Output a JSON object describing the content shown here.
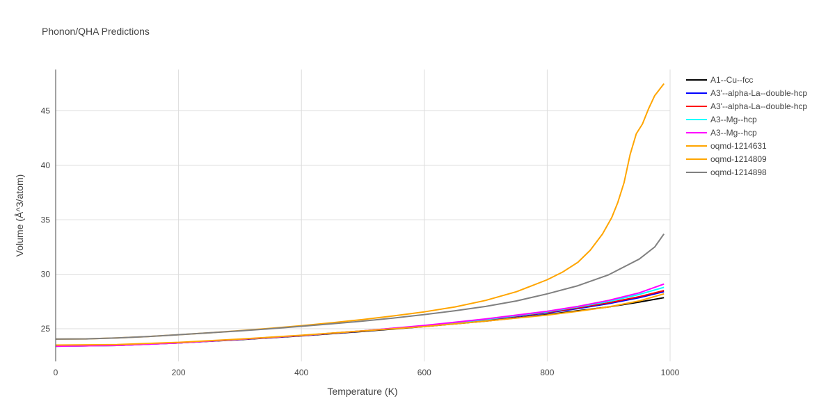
{
  "chart_data": {
    "type": "line",
    "title": "Phonon/QHA Predictions",
    "xlabel": "Temperature (K)",
    "ylabel": "Volume (Å^3/atom)",
    "xlim": [
      0,
      1000
    ],
    "ylim": [
      22.0,
      48.8
    ],
    "x_ticks": [
      0,
      200,
      400,
      600,
      800,
      1000
    ],
    "y_ticks": [
      25,
      30,
      35,
      40,
      45
    ],
    "grid": true,
    "legend_position": "right",
    "series": [
      {
        "name": "A1--Cu--fcc",
        "color": "#000000",
        "points": [
          [
            0,
            23.45
          ],
          [
            100,
            23.5
          ],
          [
            200,
            23.7
          ],
          [
            300,
            24.0
          ],
          [
            400,
            24.35
          ],
          [
            500,
            24.75
          ],
          [
            600,
            25.2
          ],
          [
            700,
            25.7
          ],
          [
            800,
            26.3
          ],
          [
            850,
            26.65
          ],
          [
            900,
            27.0
          ],
          [
            950,
            27.45
          ],
          [
            990,
            27.85
          ]
        ]
      },
      {
        "name": "A3'--alpha-La--double-hcp",
        "color": "#0000ff",
        "points": [
          [
            0,
            23.4
          ],
          [
            100,
            23.47
          ],
          [
            200,
            23.7
          ],
          [
            300,
            24.02
          ],
          [
            400,
            24.38
          ],
          [
            500,
            24.78
          ],
          [
            600,
            25.25
          ],
          [
            700,
            25.8
          ],
          [
            800,
            26.45
          ],
          [
            850,
            26.85
          ],
          [
            900,
            27.3
          ],
          [
            950,
            27.85
          ],
          [
            990,
            28.4
          ]
        ]
      },
      {
        "name": "A3'--alpha-La--double-hcp",
        "color": "#ff0000",
        "points": [
          [
            0,
            23.4
          ],
          [
            100,
            23.47
          ],
          [
            200,
            23.7
          ],
          [
            300,
            24.02
          ],
          [
            400,
            24.38
          ],
          [
            500,
            24.8
          ],
          [
            600,
            25.27
          ],
          [
            700,
            25.83
          ],
          [
            800,
            26.5
          ],
          [
            850,
            26.92
          ],
          [
            900,
            27.38
          ],
          [
            950,
            27.95
          ],
          [
            990,
            28.5
          ]
        ]
      },
      {
        "name": "A3--Mg--hcp",
        "color": "#00ffff",
        "points": [
          [
            0,
            23.4
          ],
          [
            100,
            23.47
          ],
          [
            200,
            23.7
          ],
          [
            300,
            24.02
          ],
          [
            400,
            24.38
          ],
          [
            500,
            24.8
          ],
          [
            600,
            25.28
          ],
          [
            700,
            25.85
          ],
          [
            800,
            26.55
          ],
          [
            850,
            27.0
          ],
          [
            900,
            27.5
          ],
          [
            950,
            28.15
          ],
          [
            990,
            28.8
          ]
        ]
      },
      {
        "name": "A3--Mg--hcp",
        "color": "#ff00ff",
        "points": [
          [
            0,
            23.4
          ],
          [
            100,
            23.47
          ],
          [
            200,
            23.7
          ],
          [
            300,
            24.02
          ],
          [
            400,
            24.38
          ],
          [
            500,
            24.8
          ],
          [
            600,
            25.3
          ],
          [
            700,
            25.9
          ],
          [
            800,
            26.6
          ],
          [
            850,
            27.05
          ],
          [
            900,
            27.6
          ],
          [
            950,
            28.3
          ],
          [
            990,
            29.1
          ]
        ]
      },
      {
        "name": "oqmd-1214631",
        "color": "#ffa500",
        "points": [
          [
            0,
            23.5
          ],
          [
            100,
            23.55
          ],
          [
            200,
            23.75
          ],
          [
            300,
            24.05
          ],
          [
            400,
            24.4
          ],
          [
            500,
            24.8
          ],
          [
            600,
            25.2
          ],
          [
            700,
            25.7
          ],
          [
            800,
            26.25
          ],
          [
            850,
            26.6
          ],
          [
            900,
            27.0
          ],
          [
            950,
            27.55
          ],
          [
            990,
            28.2
          ]
        ]
      },
      {
        "name": "oqmd-1214809",
        "color": "#ffa500",
        "points": [
          [
            0,
            24.05
          ],
          [
            50,
            24.07
          ],
          [
            100,
            24.15
          ],
          [
            150,
            24.28
          ],
          [
            200,
            24.45
          ],
          [
            250,
            24.62
          ],
          [
            300,
            24.82
          ],
          [
            350,
            25.04
          ],
          [
            400,
            25.28
          ],
          [
            450,
            25.55
          ],
          [
            500,
            25.85
          ],
          [
            550,
            26.18
          ],
          [
            600,
            26.55
          ],
          [
            650,
            27.0
          ],
          [
            700,
            27.6
          ],
          [
            750,
            28.4
          ],
          [
            800,
            29.5
          ],
          [
            825,
            30.2
          ],
          [
            850,
            31.1
          ],
          [
            870,
            32.2
          ],
          [
            890,
            33.7
          ],
          [
            905,
            35.2
          ],
          [
            915,
            36.6
          ],
          [
            925,
            38.4
          ],
          [
            935,
            41.0
          ],
          [
            945,
            42.9
          ],
          [
            955,
            43.8
          ],
          [
            965,
            45.2
          ],
          [
            975,
            46.4
          ],
          [
            990,
            47.5
          ]
        ]
      },
      {
        "name": "oqmd-1214898",
        "color": "#808080",
        "points": [
          [
            0,
            24.05
          ],
          [
            50,
            24.07
          ],
          [
            100,
            24.15
          ],
          [
            150,
            24.28
          ],
          [
            200,
            24.45
          ],
          [
            250,
            24.62
          ],
          [
            300,
            24.8
          ],
          [
            350,
            25.0
          ],
          [
            400,
            25.22
          ],
          [
            450,
            25.45
          ],
          [
            500,
            25.7
          ],
          [
            550,
            25.98
          ],
          [
            600,
            26.3
          ],
          [
            650,
            26.65
          ],
          [
            700,
            27.05
          ],
          [
            750,
            27.55
          ],
          [
            800,
            28.2
          ],
          [
            850,
            28.95
          ],
          [
            900,
            29.95
          ],
          [
            950,
            31.4
          ],
          [
            975,
            32.5
          ],
          [
            990,
            33.7
          ]
        ]
      }
    ]
  }
}
